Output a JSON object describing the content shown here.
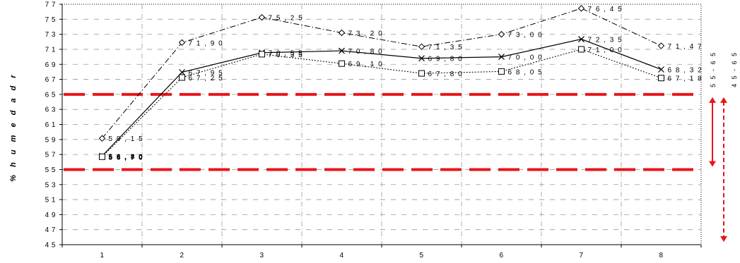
{
  "chart_data": {
    "type": "line",
    "ylabel": "% h u m e d a d   r",
    "xlabel": "",
    "title": "",
    "categories": [
      "1",
      "2",
      "3",
      "4",
      "5",
      "6",
      "7",
      "8"
    ],
    "ylim": [
      45,
      77
    ],
    "yticks": [
      "4 5",
      "4 7",
      "4 9",
      "5 1",
      "5 3",
      "5 5",
      "5 7",
      "5 9",
      "6 1",
      "6 3",
      "6 5",
      "6 7",
      "6 9",
      "7 1",
      "7 3",
      "7 5",
      "7 7"
    ],
    "ytick_values": [
      45,
      47,
      49,
      51,
      53,
      55,
      57,
      59,
      61,
      63,
      65,
      67,
      69,
      71,
      73,
      75,
      77
    ],
    "grid": true,
    "series": [
      {
        "values": [
          59.15,
          71.9,
          75.25,
          73.2,
          71.35,
          73.0,
          76.45,
          71.47
        ],
        "labels": [
          "5 9 , 1 5",
          "7 1 , 9 0",
          "7 5 , 2 5",
          "7 3 , 2 0",
          "7 1 , 3 5",
          "7 3 , 0 0",
          "7 6 , 4 5",
          "7 1 , 4 7"
        ],
        "marker": "diamond",
        "line": "dashdot",
        "color": "#000000"
      },
      {
        "values": [
          56.8,
          67.95,
          70.55,
          70.8,
          69.8,
          70.0,
          72.35,
          68.32
        ],
        "labels": [
          "5 6 , 8 0",
          "6 7 , 9 5",
          "7 0 , 5 5",
          "7 0 , 8 0",
          "6 9 , 8 0",
          "7 0 , 0 0",
          "7 2 , 3 5",
          "6 8 , 3 2"
        ],
        "marker": "x",
        "line": "solid",
        "color": "#000000"
      },
      {
        "values": [
          56.7,
          67.25,
          70.35,
          69.1,
          67.8,
          68.05,
          71.0,
          67.18
        ],
        "labels": [
          "5 6 , 7 0",
          "6 7 , 2 5",
          "7 0 , 3 5",
          "6 9 , 1 0",
          "6 7 , 8 0",
          "6 8 , 0 5",
          "7 1 , 0 0",
          "6 7 , 1 8"
        ],
        "marker": "square",
        "line": "dotted",
        "color": "#000000"
      }
    ],
    "reference_lines": [
      {
        "y": 65,
        "color": "#e8151b",
        "style": "dashed"
      },
      {
        "y": 55,
        "color": "#e8151b",
        "style": "dashed"
      }
    ],
    "ranges": [
      {
        "label": "5 5 - 6 5",
        "from": 55,
        "to": 65,
        "color": "#e8151b"
      },
      {
        "label": "4 5 - 6 5",
        "from": 45,
        "to": 65,
        "color": "#e8151b"
      }
    ]
  }
}
